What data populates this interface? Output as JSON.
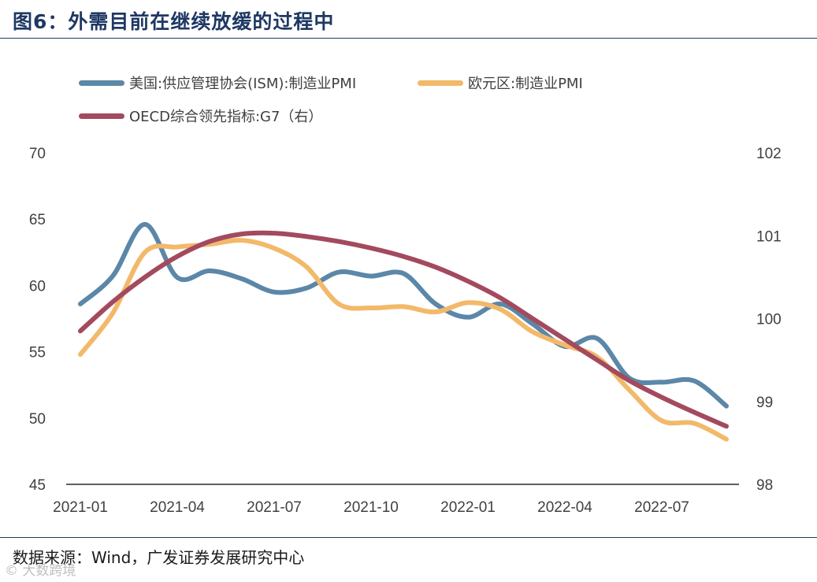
{
  "header": {
    "title": "图6：外需目前在继续放缓的过程中"
  },
  "footer": {
    "source": "数据来源：Wind，广发证券发展研究中心",
    "watermark": "© 大数跨境"
  },
  "chart_data": {
    "type": "line",
    "title": "图6：外需目前在继续放缓的过程中",
    "xlabel": "",
    "ylabel": "",
    "x_ticks": [
      "2021-01",
      "2021-04",
      "2021-07",
      "2021-10",
      "2022-01",
      "2022-04",
      "2022-07"
    ],
    "y_left": {
      "min": 45,
      "max": 70,
      "ticks": [
        "45",
        "50",
        "55",
        "60",
        "65",
        "70"
      ]
    },
    "y_right": {
      "min": 98,
      "max": 102,
      "ticks": [
        "98",
        "99",
        "100",
        "101",
        "102"
      ]
    },
    "legend_position": "top",
    "grid": false,
    "series": [
      {
        "name": "美国:供应管理协会(ISM):制造业PMI",
        "axis": "left",
        "color": "#5b87a8",
        "x": [
          "2021-01",
          "2021-02",
          "2021-03",
          "2021-04",
          "2021-05",
          "2021-06",
          "2021-07",
          "2021-08",
          "2021-09",
          "2021-10",
          "2021-11",
          "2021-12",
          "2022-01",
          "2022-02",
          "2022-03",
          "2022-04",
          "2022-05",
          "2022-06",
          "2022-07",
          "2022-08",
          "2022-09"
        ],
        "values": [
          58.6,
          60.7,
          64.6,
          60.6,
          61.1,
          60.5,
          59.5,
          59.8,
          61.0,
          60.7,
          60.9,
          58.6,
          57.6,
          58.6,
          57.1,
          55.4,
          56.0,
          53.0,
          52.7,
          52.8,
          50.9
        ]
      },
      {
        "name": "欧元区:制造业PMI",
        "axis": "left",
        "color": "#f2b96a",
        "x": [
          "2021-01",
          "2021-02",
          "2021-03",
          "2021-04",
          "2021-05",
          "2021-06",
          "2021-07",
          "2021-08",
          "2021-09",
          "2021-10",
          "2021-11",
          "2021-12",
          "2022-01",
          "2022-02",
          "2022-03",
          "2022-04",
          "2022-05",
          "2022-06",
          "2022-07",
          "2022-08",
          "2022-09"
        ],
        "values": [
          54.8,
          57.9,
          62.5,
          62.9,
          63.1,
          63.4,
          62.8,
          61.4,
          58.6,
          58.3,
          58.4,
          58.0,
          58.7,
          58.2,
          56.5,
          55.5,
          54.6,
          52.1,
          49.8,
          49.6,
          48.4
        ]
      },
      {
        "name": "OECD综合领先指标:G7（右）",
        "axis": "right",
        "color": "#a34a5e",
        "x": [
          "2021-01",
          "2021-02",
          "2021-03",
          "2021-04",
          "2021-05",
          "2021-06",
          "2021-07",
          "2021-08",
          "2021-09",
          "2021-10",
          "2021-11",
          "2021-12",
          "2022-01",
          "2022-02",
          "2022-03",
          "2022-04",
          "2022-05",
          "2022-06",
          "2022-07",
          "2022-08",
          "2022-09"
        ],
        "values": [
          99.85,
          100.2,
          100.5,
          100.75,
          100.93,
          101.02,
          101.03,
          100.99,
          100.93,
          100.85,
          100.75,
          100.62,
          100.45,
          100.25,
          100.0,
          99.75,
          99.5,
          99.25,
          99.05,
          98.87,
          98.7
        ]
      }
    ]
  }
}
